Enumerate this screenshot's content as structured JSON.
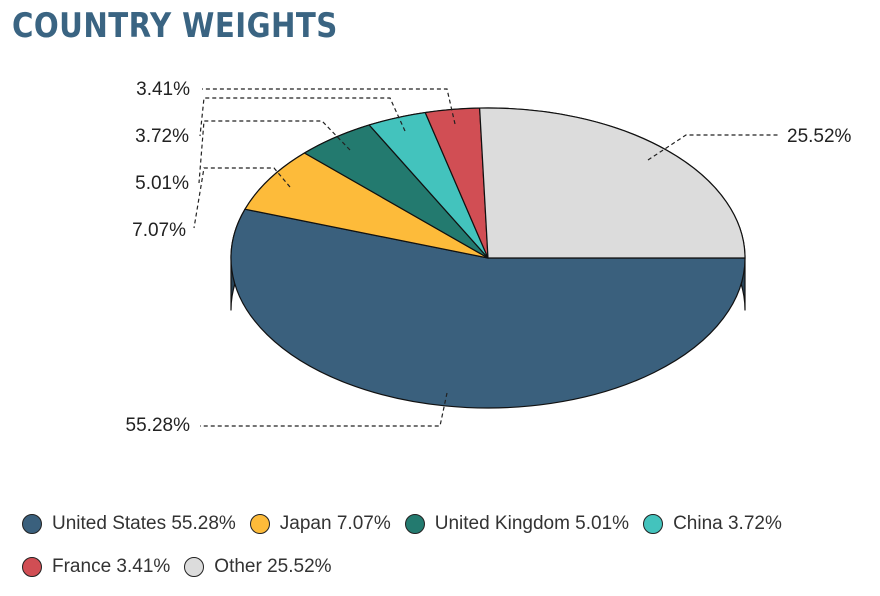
{
  "title": "COUNTRY WEIGHTS",
  "chart_data": {
    "type": "pie",
    "style": "3d",
    "categories": [
      "United States",
      "Japan",
      "United Kingdom",
      "China",
      "France",
      "Other"
    ],
    "values": [
      55.28,
      7.07,
      5.01,
      3.72,
      3.41,
      25.52
    ],
    "data_labels": [
      "55.28%",
      "7.07%",
      "5.01%",
      "3.72%",
      "3.41%",
      "25.52%"
    ],
    "colors": [
      "#3a607d",
      "#fdbb3a",
      "#237a6f",
      "#43c3bd",
      "#d14e54",
      "#dcdcdc"
    ],
    "side_colors": [
      "#2a4458",
      "#c8922d",
      "#1a5a52",
      "#329793",
      "#a33c41",
      "#aaaaaa"
    ],
    "legend_position": "bottom"
  },
  "legend": {
    "rows": [
      [
        {
          "label": "United States 55.28%",
          "color": "#3a607d"
        },
        {
          "label": "Japan 7.07%",
          "color": "#fdbb3a"
        },
        {
          "label": "United Kingdom 5.01%",
          "color": "#237a6f"
        },
        {
          "label": "China 3.72%",
          "color": "#43c3bd"
        }
      ],
      [
        {
          "label": "France 3.41%",
          "color": "#d14e54"
        },
        {
          "label": "Other 25.52%",
          "color": "#dcdcdc"
        }
      ]
    ]
  }
}
